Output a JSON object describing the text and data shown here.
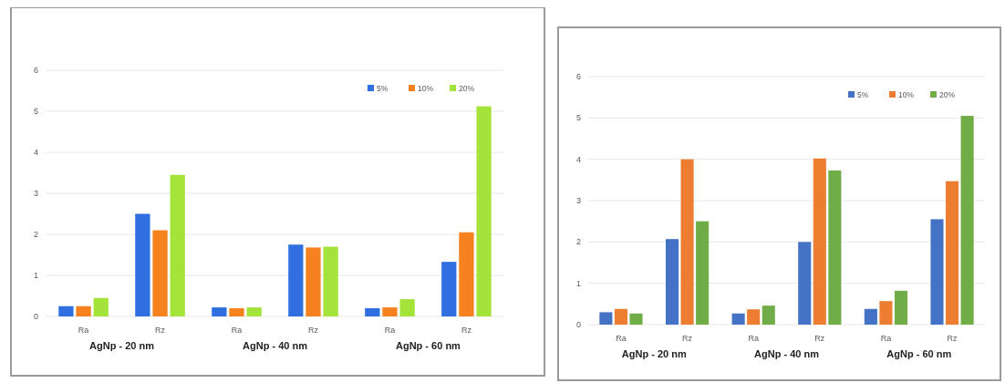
{
  "chart_data": [
    {
      "type": "bar",
      "categories": [
        "Ra",
        "Rz",
        "Ra",
        "Rz",
        "Ra",
        "Rz"
      ],
      "series": [
        {
          "name": "5%",
          "color": "#2f6fe0",
          "values": [
            0.25,
            2.5,
            0.22,
            1.75,
            0.2,
            1.33
          ]
        },
        {
          "name": "10%",
          "color": "#f5821f",
          "values": [
            0.25,
            2.1,
            0.2,
            1.68,
            0.22,
            2.05
          ]
        },
        {
          "name": "20%",
          "color": "#a4e33a",
          "values": [
            0.45,
            3.45,
            0.22,
            1.7,
            0.42,
            5.12
          ]
        }
      ],
      "annotations": [
        "AgNp - 20 nm",
        "AgNp - 40 nm",
        "AgNp - 60 nm"
      ],
      "ylim": [
        0,
        6
      ],
      "yticks": [
        0,
        1,
        2,
        3,
        4,
        5,
        6
      ],
      "grid": "y",
      "legend": "top right"
    },
    {
      "type": "bar",
      "categories": [
        "Ra",
        "Rz",
        "Ra",
        "Rz",
        "Ra",
        "Rz"
      ],
      "series": [
        {
          "name": "5%",
          "color": "#4472c4",
          "values": [
            0.3,
            2.07,
            0.27,
            2.0,
            0.38,
            2.55
          ]
        },
        {
          "name": "10%",
          "color": "#ed7d31",
          "values": [
            0.38,
            4.0,
            0.37,
            4.02,
            0.57,
            3.47
          ]
        },
        {
          "name": "20%",
          "color": "#70ad47",
          "values": [
            0.27,
            2.5,
            0.46,
            3.73,
            0.82,
            5.05
          ]
        }
      ],
      "annotations": [
        "AgNp - 20 nm",
        "AgNp - 40 nm",
        "AgNp - 60 nm"
      ],
      "ylim": [
        0,
        6
      ],
      "yticks": [
        0,
        1,
        2,
        3,
        4,
        5,
        6
      ],
      "grid": "y",
      "legend": "top right"
    }
  ]
}
